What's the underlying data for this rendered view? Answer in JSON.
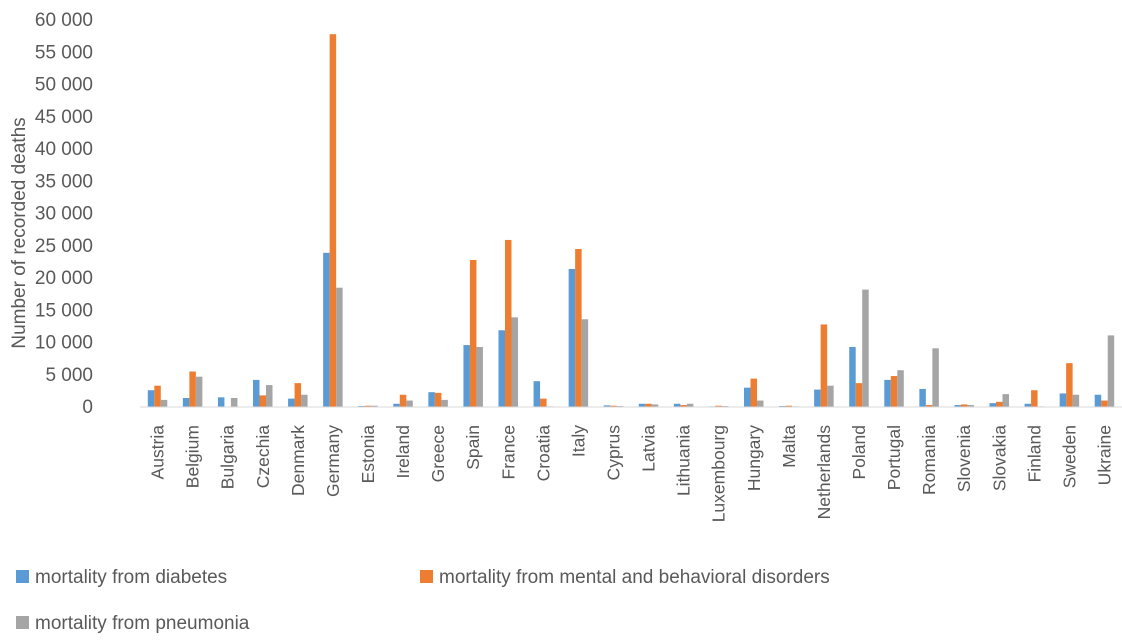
{
  "chart_data": {
    "type": "bar",
    "title": "",
    "xlabel": "",
    "ylabel": "Number of recorded deaths",
    "ylim": [
      0,
      60000
    ],
    "yticks": [
      0,
      5000,
      10000,
      15000,
      20000,
      25000,
      30000,
      35000,
      40000,
      45000,
      50000,
      55000,
      60000
    ],
    "ytick_labels": [
      "0",
      "5 000",
      "10 000",
      "15 000",
      "20 000",
      "25 000",
      "30 000",
      "35 000",
      "40 000",
      "45 000",
      "50 000",
      "55 000",
      "60 000"
    ],
    "grid": false,
    "legend_position": "bottom",
    "categories": [
      "Austria",
      "Belgium",
      "Bulgaria",
      "Czechia",
      "Denmark",
      "Germany",
      "Estonia",
      "Ireland",
      "Greece",
      "Spain",
      "France",
      "Croatia",
      "Italy",
      "Cyprus",
      "Latvia",
      "Lithuania",
      "Luxembourg",
      "Hungary",
      "Malta",
      "Netherlands",
      "Poland",
      "Portugal",
      "Romania",
      "Slovenia",
      "Slovakia",
      "Finland",
      "Sweden",
      "Ukraine"
    ],
    "series": [
      {
        "name": "mortality from diabetes",
        "color": "#5b9bd5",
        "values": [
          2600,
          1400,
          1500,
          4200,
          1300,
          23900,
          150,
          500,
          2300,
          9600,
          11900,
          4000,
          21400,
          250,
          500,
          500,
          100,
          3000,
          150,
          2700,
          9300,
          4200,
          2800,
          300,
          600,
          500,
          2100,
          1900
        ]
      },
      {
        "name": "mortality from mental and behavioral disorders",
        "color": "#ed7d31",
        "values": [
          3300,
          5500,
          50,
          1800,
          3700,
          57800,
          200,
          1900,
          2200,
          22800,
          25900,
          1300,
          24500,
          200,
          500,
          300,
          200,
          4400,
          200,
          12800,
          3700,
          4800,
          300,
          400,
          800,
          2600,
          6800,
          1000
        ]
      },
      {
        "name": "mortality from pneumonia",
        "color": "#a5a5a5",
        "values": [
          1100,
          4700,
          1400,
          3400,
          1900,
          18500,
          200,
          1000,
          1100,
          9300,
          13900,
          100,
          13600,
          150,
          400,
          500,
          150,
          1000,
          100,
          3300,
          18200,
          5700,
          9100,
          300,
          2000,
          100,
          1900,
          11100
        ]
      }
    ]
  }
}
